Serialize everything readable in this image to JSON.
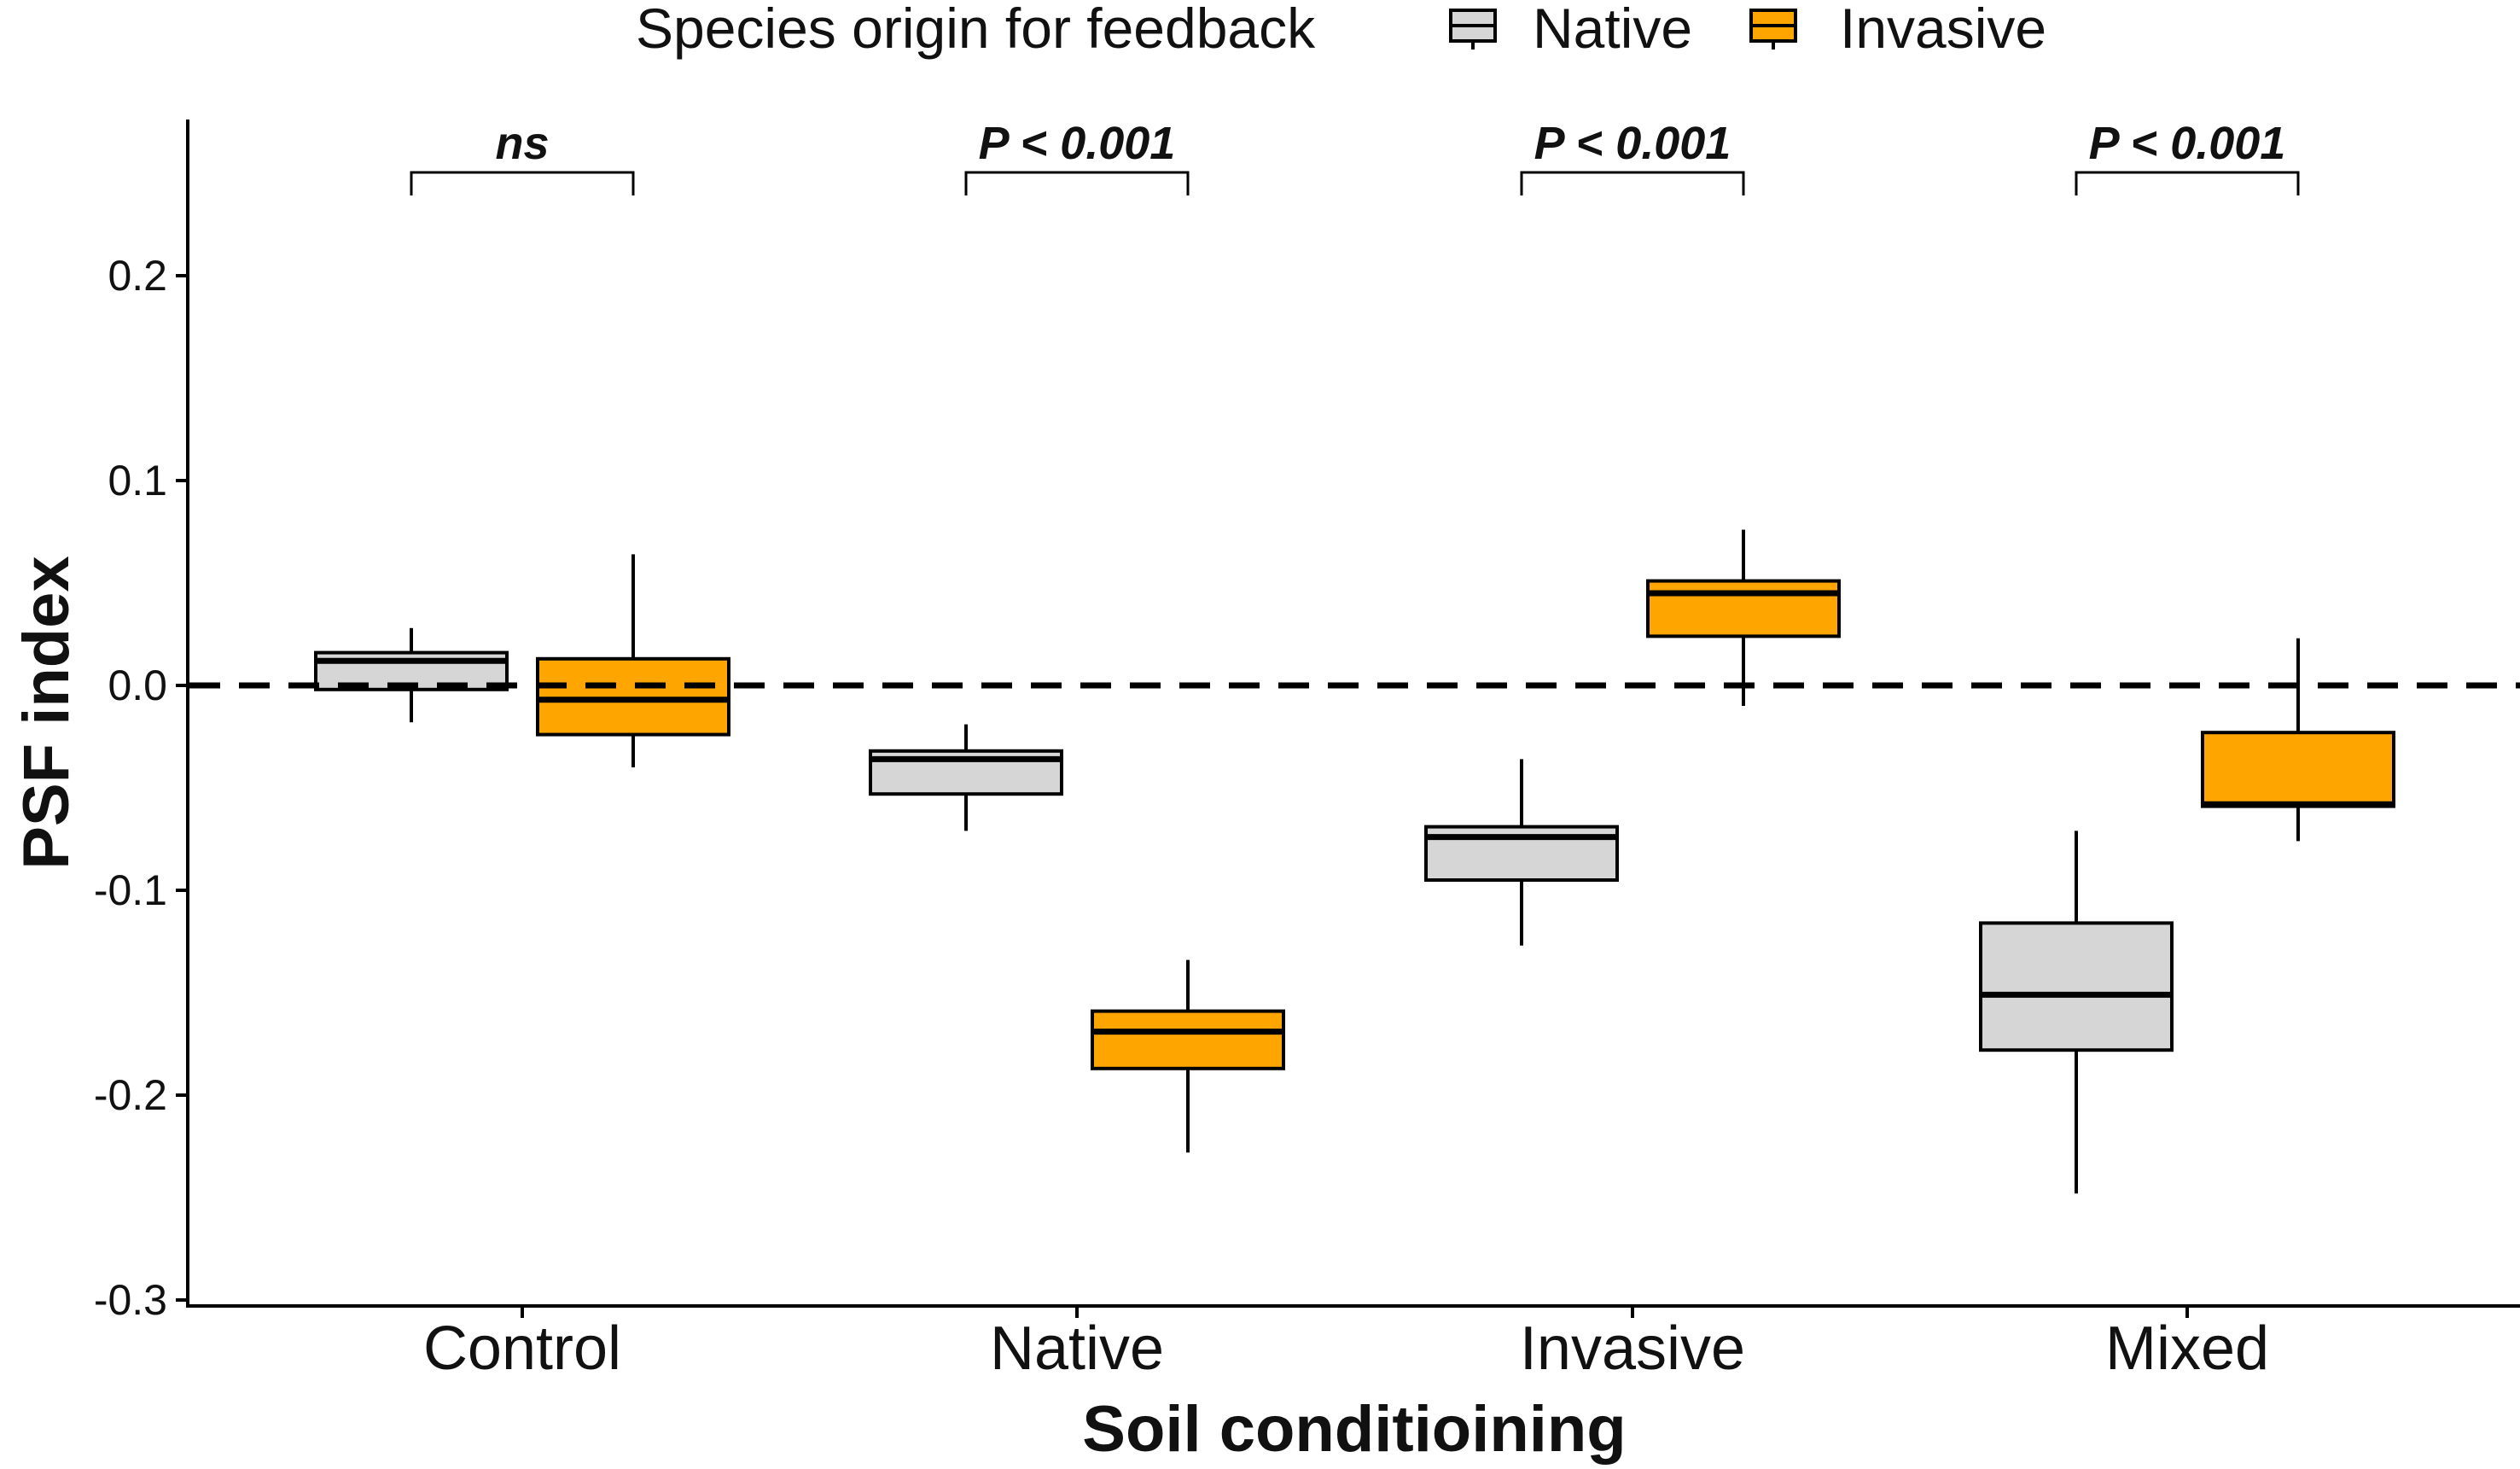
{
  "chart_data": {
    "type": "boxplot",
    "title": "",
    "xlabel": "Soil conditioining",
    "ylabel": "PSF index",
    "ylim": [
      -0.3,
      0.25
    ],
    "yticks": [
      {
        "value": 0.2,
        "label": "0.2"
      },
      {
        "value": 0.1,
        "label": "0.1"
      },
      {
        "value": 0.0,
        "label": "0.0"
      },
      {
        "value": -0.1,
        "label": "-0.1"
      },
      {
        "value": -0.2,
        "label": "-0.2"
      },
      {
        "value": -0.3,
        "label": "-0.3"
      }
    ],
    "categories": [
      "Control",
      "Native",
      "Invasive",
      "Mixed"
    ],
    "reference_line": {
      "value": 0.0,
      "style": "dashed"
    },
    "legend": {
      "title": "Species origin for feedback",
      "position": "top",
      "entries": [
        {
          "name": "Native",
          "color": "#d6d6d6"
        },
        {
          "name": "Invasive",
          "color": "#ffa500"
        }
      ]
    },
    "series": [
      {
        "name": "Native",
        "color": "#d6d6d6",
        "boxes": [
          {
            "category": "Control",
            "whisker_low": -0.018,
            "q1": -0.002,
            "median": 0.012,
            "q3": 0.016,
            "whisker_high": 0.028
          },
          {
            "category": "Native",
            "whisker_low": -0.071,
            "q1": -0.053,
            "median": -0.036,
            "q3": -0.032,
            "whisker_high": -0.019
          },
          {
            "category": "Invasive",
            "whisker_low": -0.127,
            "q1": -0.095,
            "median": -0.074,
            "q3": -0.069,
            "whisker_high": -0.036
          },
          {
            "category": "Mixed",
            "whisker_low": -0.248,
            "q1": -0.178,
            "median": -0.151,
            "q3": -0.116,
            "whisker_high": -0.071
          }
        ]
      },
      {
        "name": "Invasive",
        "color": "#ffa500",
        "boxes": [
          {
            "category": "Control",
            "whisker_low": -0.04,
            "q1": -0.024,
            "median": -0.007,
            "q3": 0.013,
            "whisker_high": 0.064
          },
          {
            "category": "Native",
            "whisker_low": -0.228,
            "q1": -0.187,
            "median": -0.169,
            "q3": -0.159,
            "whisker_high": -0.134
          },
          {
            "category": "Invasive",
            "whisker_low": -0.01,
            "q1": 0.024,
            "median": 0.045,
            "q3": 0.051,
            "whisker_high": 0.076
          },
          {
            "category": "Mixed",
            "whisker_low": -0.076,
            "q1": -0.059,
            "median": -0.058,
            "q3": -0.023,
            "whisker_high": 0.023
          }
        ]
      }
    ],
    "significance": [
      {
        "category": "Control",
        "label": "ns"
      },
      {
        "category": "Native",
        "label": "P < 0.001"
      },
      {
        "category": "Invasive",
        "label": "P < 0.001"
      },
      {
        "category": "Mixed",
        "label": "P < 0.001"
      }
    ]
  }
}
